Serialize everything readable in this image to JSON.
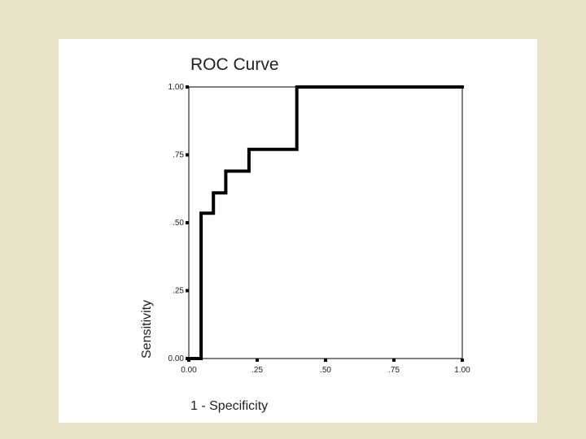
{
  "chart_data": {
    "type": "line",
    "title": "ROC Curve",
    "xlabel": "1 - Specificity",
    "ylabel": "Sensitivity",
    "xlim": [
      0,
      1
    ],
    "ylim": [
      0,
      1
    ],
    "x_ticks": [
      "0.00",
      ".25",
      ".50",
      ".75",
      "1.00"
    ],
    "y_ticks": [
      "0.00",
      ".25",
      ".50",
      ".75",
      "1.00"
    ],
    "grid": false,
    "step": true,
    "series": [
      {
        "color": "#000000",
        "x": [
          0.0,
          0.045,
          0.045,
          0.09,
          0.09,
          0.135,
          0.135,
          0.22,
          0.22,
          0.395,
          0.395,
          1.0
        ],
        "y": [
          0.0,
          0.0,
          0.535,
          0.535,
          0.61,
          0.61,
          0.69,
          0.69,
          0.77,
          0.77,
          1.0,
          1.0
        ]
      }
    ]
  }
}
